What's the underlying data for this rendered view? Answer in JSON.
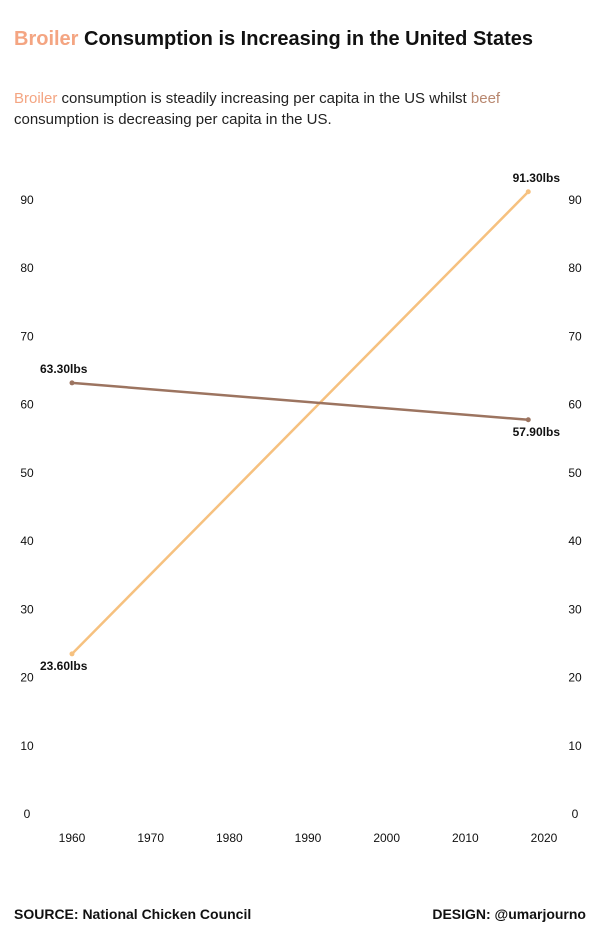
{
  "chart_data": {
    "type": "line",
    "title_highlight": "Broiler",
    "title_highlight_color": "#f4a582",
    "title": " Consumption is Increasing in the United States",
    "subtitle_parts": [
      {
        "text": "Broiler",
        "color": "#f4a582"
      },
      {
        "text": " consumption is steadily increasing per capita in the US whilst ",
        "color": "#222222"
      },
      {
        "text": "beef",
        "color": "#b8876f"
      },
      {
        "text": " consumption is decreasing per capita in the US.",
        "color": "#222222"
      }
    ],
    "x": [
      1960,
      2018
    ],
    "xlim": [
      1960,
      2020
    ],
    "xticks": [
      1960,
      1970,
      1980,
      1990,
      2000,
      2010,
      2020
    ],
    "ylim": [
      0,
      92
    ],
    "yticks": [
      0,
      10,
      20,
      30,
      40,
      50,
      60,
      70,
      80,
      90
    ],
    "series": [
      {
        "name": "Broiler",
        "color": "#f6c17f",
        "values": [
          23.6,
          91.3
        ],
        "value_labels": [
          "23.60lbs",
          "91.30lbs"
        ]
      },
      {
        "name": "Beef",
        "color": "#9c7460",
        "values": [
          63.3,
          57.9
        ],
        "value_labels": [
          "63.30lbs",
          "57.90lbs"
        ]
      }
    ],
    "source": "SOURCE: National Chicken Council",
    "credit": "DESIGN: @umarjourno"
  }
}
